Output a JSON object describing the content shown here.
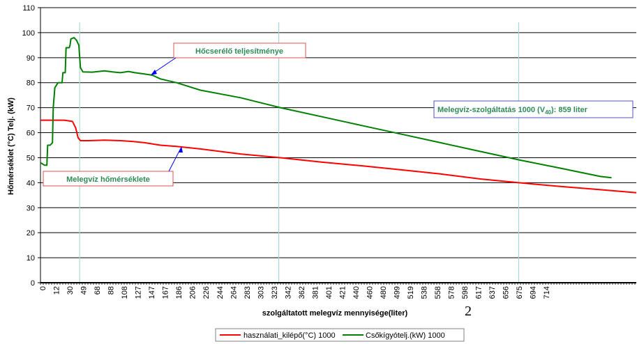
{
  "chart_data": {
    "type": "line",
    "title": "",
    "xlabel": "szolgáltatott melegvíz mennyisége(liter)",
    "ylabel": "Hőmérséklet (°C) Telj. (kW)",
    "ylim": [
      0,
      110
    ],
    "xlim": [
      0,
      745
    ],
    "y_ticks": [
      0,
      10,
      20,
      30,
      40,
      50,
      60,
      70,
      80,
      90,
      100,
      110
    ],
    "x_tick_labels": [
      "0",
      "12",
      "30",
      "49",
      "68",
      "88",
      "108",
      "127",
      "147",
      "167",
      "186",
      "206",
      "226",
      "244",
      "264",
      "283",
      "303",
      "323",
      "342",
      "362",
      "381",
      "401",
      "421",
      "440",
      "460",
      "480",
      "499",
      "519",
      "538",
      "558",
      "578",
      "598",
      "617",
      "637",
      "656",
      "675",
      "694",
      "714"
    ],
    "grid": true,
    "vertical_markers": [
      49,
      298,
      598
    ],
    "legend_position": "bottom",
    "series": [
      {
        "name": "használati_kilépő(°C) 1000",
        "color": "#ff0000",
        "points": [
          [
            0,
            65
          ],
          [
            30,
            65
          ],
          [
            40,
            64.5
          ],
          [
            44,
            62
          ],
          [
            47,
            58
          ],
          [
            50,
            56.8
          ],
          [
            60,
            56.8
          ],
          [
            80,
            57
          ],
          [
            100,
            56.8
          ],
          [
            115,
            56.5
          ],
          [
            130,
            56
          ],
          [
            150,
            55
          ],
          [
            170,
            54.5
          ],
          [
            200,
            53.5
          ],
          [
            250,
            51.5
          ],
          [
            300,
            50
          ],
          [
            350,
            48.3
          ],
          [
            400,
            46.8
          ],
          [
            450,
            45.2
          ],
          [
            500,
            43.5
          ],
          [
            550,
            41.5
          ],
          [
            598,
            40
          ],
          [
            650,
            38.5
          ],
          [
            700,
            37.2
          ],
          [
            745,
            36
          ]
        ]
      },
      {
        "name": "Csőkígyótelj.(kW) 1000",
        "color": "#008000",
        "points": [
          [
            0,
            48
          ],
          [
            5,
            47
          ],
          [
            8,
            47
          ],
          [
            9,
            55
          ],
          [
            12,
            55
          ],
          [
            15,
            56
          ],
          [
            16,
            70
          ],
          [
            18,
            78
          ],
          [
            22,
            80
          ],
          [
            27,
            80
          ],
          [
            28,
            84
          ],
          [
            31,
            84
          ],
          [
            32,
            94
          ],
          [
            36,
            94
          ],
          [
            37,
            95
          ],
          [
            38,
            97.5
          ],
          [
            42,
            98
          ],
          [
            45,
            97
          ],
          [
            48,
            95
          ],
          [
            50,
            86
          ],
          [
            53,
            84.3
          ],
          [
            65,
            84.2
          ],
          [
            80,
            84.7
          ],
          [
            90,
            84.3
          ],
          [
            100,
            84
          ],
          [
            110,
            84.5
          ],
          [
            118,
            84
          ],
          [
            130,
            83.5
          ],
          [
            140,
            83
          ],
          [
            150,
            81.5
          ],
          [
            170,
            80
          ],
          [
            200,
            77
          ],
          [
            250,
            74
          ],
          [
            300,
            70
          ],
          [
            350,
            66.5
          ],
          [
            400,
            63
          ],
          [
            450,
            59.5
          ],
          [
            500,
            56
          ],
          [
            550,
            52.5
          ],
          [
            600,
            49
          ],
          [
            650,
            45.8
          ],
          [
            700,
            42.5
          ],
          [
            714,
            42
          ]
        ]
      }
    ],
    "annotations": [
      {
        "text": "Hőcserélő teljesítménye",
        "points_to": "Csőkígyótelj.(kW) 1000"
      },
      {
        "text": "Melegvíz hőmérséklete",
        "points_to": "használati_kilépő(°C) 1000"
      },
      {
        "text_prefix": "Melegvíz-szolgáltatás 1000 (V",
        "text_sub": "40",
        "text_suffix": "): 859 liter"
      }
    ]
  },
  "page_number": "2"
}
